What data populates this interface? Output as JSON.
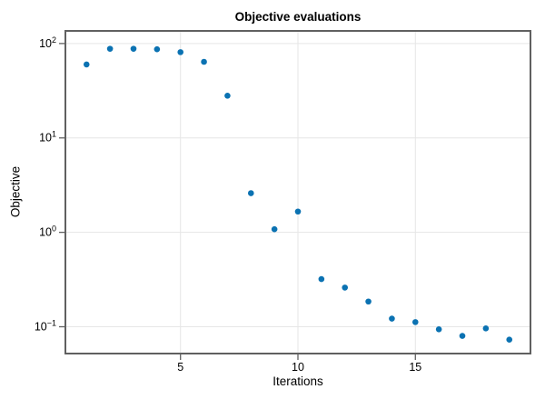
{
  "figure": {
    "title": "Objective evaluations",
    "xlabel": "Iterations",
    "ylabel": "Objective"
  },
  "chart_data": {
    "type": "scatter",
    "title": "Objective evaluations",
    "xlabel": "Iterations",
    "ylabel": "Objective",
    "x": [
      1,
      2,
      3,
      4,
      5,
      6,
      7,
      8,
      9,
      10,
      11,
      12,
      13,
      14,
      15,
      16,
      17,
      18,
      19
    ],
    "y": [
      60,
      88,
      88,
      87,
      81,
      64,
      28,
      2.6,
      1.08,
      1.66,
      0.32,
      0.26,
      0.185,
      0.122,
      0.112,
      0.094,
      0.08,
      0.096,
      0.073
    ],
    "yscale": "log",
    "xlim": [
      0.1,
      19.9
    ],
    "ylim": [
      0.052,
      136
    ],
    "x_ticks": [
      5,
      10,
      15
    ],
    "y_tick_base": "10",
    "y_tick_exponents": [
      2,
      1,
      0,
      -1
    ],
    "grid": true,
    "legend": "none",
    "marker_color": "#0b72b2",
    "frame_color": "#606060",
    "grid_color": "#e6e6e6",
    "tick_color": "#606060",
    "label_color": "#000000",
    "marker_radius": 3.3
  }
}
